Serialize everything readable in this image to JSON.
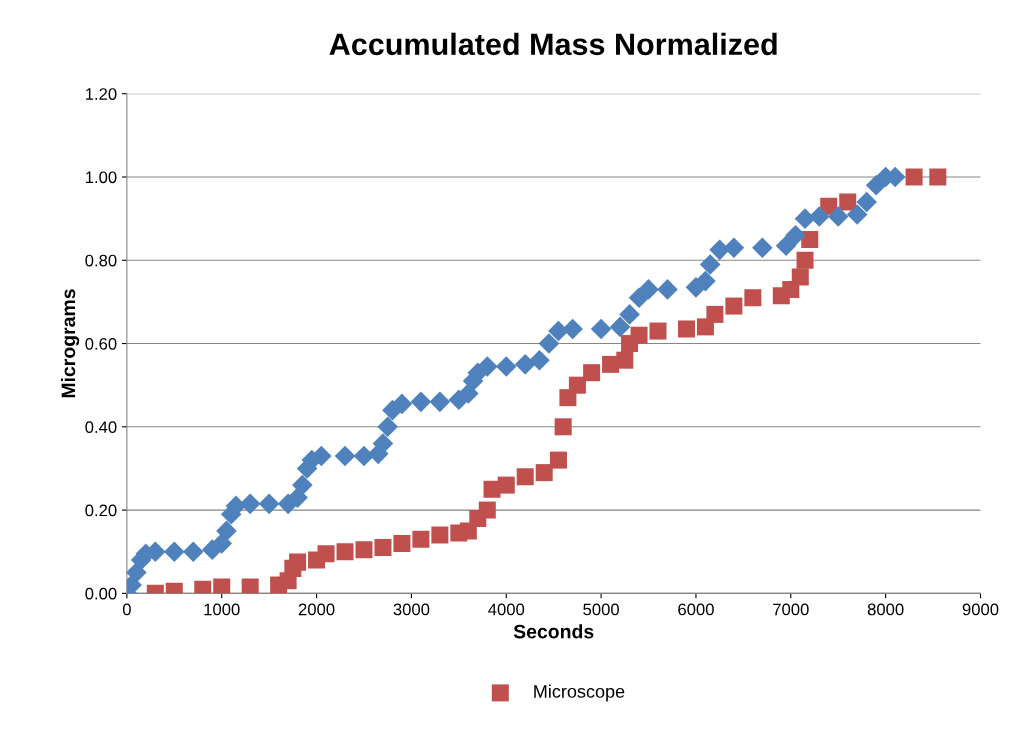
{
  "chart_data": {
    "type": "scatter",
    "title": "Accumulated Mass Normalized",
    "xlabel": "Seconds",
    "ylabel": "Micrograms",
    "xlim": [
      0,
      9000
    ],
    "xticks": [
      0,
      1000,
      2000,
      3000,
      4000,
      5000,
      6000,
      7000,
      8000,
      9000
    ],
    "ylim": [
      0,
      1.2
    ],
    "yticks": [
      {
        "value": 0,
        "label": "0.00"
      },
      {
        "value": 0.2,
        "label": "0.20"
      },
      {
        "value": 0.4,
        "label": "0.40"
      },
      {
        "value": 0.6,
        "label": "0.60"
      },
      {
        "value": 0.8,
        "label": "0.80"
      },
      {
        "value": 1.0,
        "label": "1.00"
      },
      {
        "value": 1.2,
        "label": "1.20"
      }
    ],
    "grid": "y",
    "legend": "bottom",
    "series": [
      {
        "name": "Microscope",
        "color": "#c0504d",
        "marker": "square",
        "x": [
          300,
          500,
          800,
          1000,
          1300,
          1600,
          1700,
          1750,
          1800,
          2000,
          2100,
          2300,
          2500,
          2700,
          2900,
          3100,
          3300,
          3500,
          3600,
          3700,
          3800,
          3850,
          4000,
          4200,
          4400,
          4550,
          4600,
          4650,
          4750,
          4900,
          5100,
          5250,
          5300,
          5400,
          5600,
          5900,
          6100,
          6200,
          6400,
          6600,
          6900,
          7000,
          7100,
          7150,
          7200,
          7400,
          7600,
          8300,
          8550
        ],
        "values": [
          0,
          0.005,
          0.01,
          0.015,
          0.015,
          0.02,
          0.03,
          0.06,
          0.075,
          0.08,
          0.095,
          0.1,
          0.105,
          0.11,
          0.12,
          0.13,
          0.14,
          0.145,
          0.15,
          0.18,
          0.2,
          0.25,
          0.26,
          0.28,
          0.29,
          0.32,
          0.4,
          0.47,
          0.5,
          0.53,
          0.55,
          0.56,
          0.6,
          0.62,
          0.63,
          0.635,
          0.64,
          0.67,
          0.69,
          0.71,
          0.715,
          0.73,
          0.76,
          0.8,
          0.85,
          0.93,
          0.94,
          1.0,
          1.0
        ]
      },
      {
        "color": "#4f81bd",
        "marker": "diamond",
        "x": [
          0,
          50,
          100,
          150,
          200,
          300,
          500,
          700,
          900,
          1000,
          1050,
          1100,
          1150,
          1300,
          1500,
          1700,
          1800,
          1850,
          1900,
          1950,
          2050,
          2300,
          2500,
          2650,
          2700,
          2750,
          2800,
          2900,
          3100,
          3300,
          3500,
          3600,
          3650,
          3700,
          3800,
          4000,
          4200,
          4350,
          4450,
          4550,
          4700,
          5000,
          5200,
          5300,
          5400,
          5500,
          5700,
          6000,
          6100,
          6150,
          6250,
          6400,
          6700,
          6950,
          7050,
          7150,
          7300,
          7500,
          7700,
          7800,
          7900,
          8000,
          8100
        ],
        "values": [
          0,
          0.02,
          0.05,
          0.08,
          0.095,
          0.1,
          0.1,
          0.1,
          0.105,
          0.12,
          0.15,
          0.19,
          0.21,
          0.215,
          0.215,
          0.215,
          0.23,
          0.26,
          0.3,
          0.32,
          0.33,
          0.33,
          0.33,
          0.335,
          0.36,
          0.4,
          0.44,
          0.455,
          0.46,
          0.46,
          0.465,
          0.48,
          0.51,
          0.53,
          0.545,
          0.545,
          0.55,
          0.56,
          0.6,
          0.63,
          0.635,
          0.635,
          0.64,
          0.67,
          0.71,
          0.73,
          0.73,
          0.735,
          0.75,
          0.79,
          0.825,
          0.83,
          0.83,
          0.835,
          0.86,
          0.9,
          0.905,
          0.905,
          0.91,
          0.94,
          0.98,
          1.0,
          1.0
        ]
      }
    ]
  }
}
